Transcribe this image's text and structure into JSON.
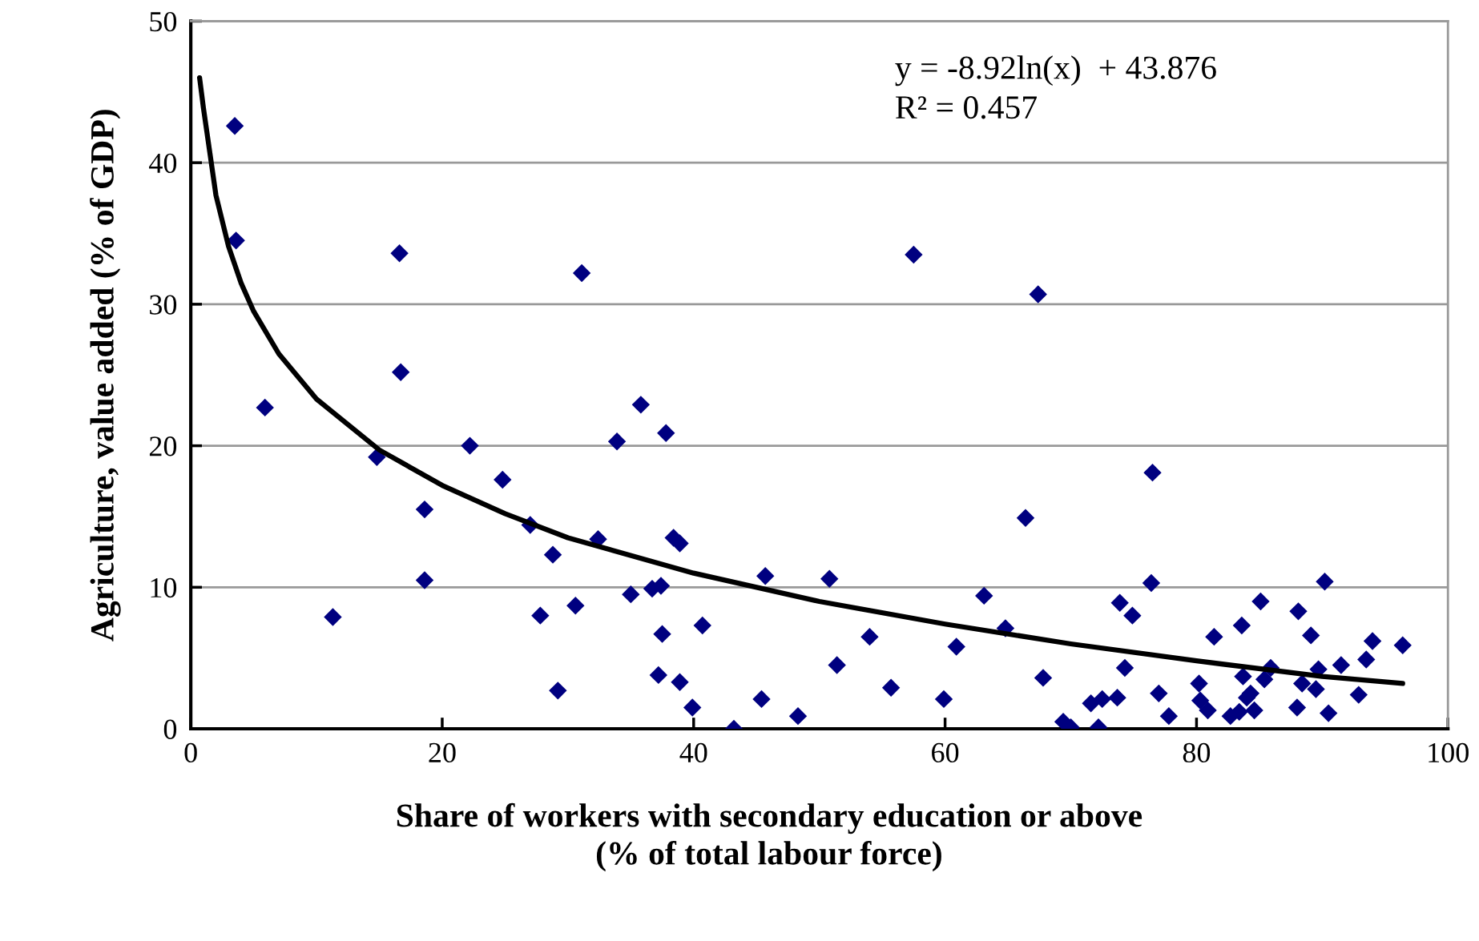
{
  "chart_data": {
    "type": "scatter",
    "xlabel": "Share of workers with secondary education or above\n(% of total labour force)",
    "ylabel": "Agriculture, value added (% of GDP)",
    "annotations": [
      "y = -8.92ln(x)  + 43.876",
      "R² = 0.457"
    ],
    "xlim": [
      0,
      100
    ],
    "xticks": [
      0,
      20,
      40,
      60,
      80,
      100
    ],
    "ylim": [
      0,
      50
    ],
    "yticks": [
      0,
      10,
      20,
      30,
      40,
      50
    ],
    "grid": "y",
    "legend": false,
    "series": [
      {
        "color": "#000080",
        "marker": "diamond",
        "x": [
          3.5,
          3.6,
          5.9,
          11.3,
          16.6,
          16.7,
          14.8,
          18.6,
          18.6,
          22.2,
          24.8,
          27.0,
          28.8,
          27.8,
          29.2,
          31.1,
          30.6,
          32.4,
          33.9,
          35.0,
          35.8,
          37.8,
          36.7,
          37.4,
          37.5,
          37.2,
          38.4,
          38.9,
          38.9,
          39.9,
          40.7,
          43.2,
          45.4,
          45.7,
          48.3,
          50.8,
          51.4,
          54.0,
          55.7,
          57.5,
          59.9,
          60.9,
          63.1,
          64.8,
          66.4,
          67.4,
          67.8,
          69.4,
          70.0,
          71.6,
          72.2,
          72.5,
          73.7,
          73.9,
          74.3,
          74.9,
          76.5,
          76.4,
          77.0,
          77.8,
          80.2,
          80.3,
          80.9,
          81.4,
          82.7,
          83.4,
          83.6,
          83.7,
          84.0,
          84.3,
          84.6,
          85.1,
          85.4,
          85.9,
          88.1,
          88.0,
          88.4,
          89.1,
          89.5,
          89.7,
          90.2,
          90.5,
          91.5,
          92.9,
          93.5,
          94.0,
          96.4
        ],
        "values": [
          42.6,
          34.5,
          22.7,
          7.9,
          33.6,
          25.2,
          19.2,
          15.5,
          10.5,
          20.0,
          17.6,
          14.4,
          12.3,
          8.0,
          2.7,
          32.2,
          8.7,
          13.4,
          20.3,
          9.5,
          22.9,
          20.9,
          9.9,
          10.1,
          6.7,
          3.8,
          13.5,
          13.1,
          3.3,
          1.5,
          7.3,
          0.0,
          2.1,
          10.8,
          0.9,
          10.6,
          4.5,
          6.5,
          2.9,
          33.5,
          2.1,
          5.8,
          9.4,
          7.1,
          14.9,
          30.7,
          3.6,
          0.5,
          0.1,
          1.8,
          0.1,
          2.1,
          2.2,
          8.9,
          4.3,
          8.0,
          18.1,
          10.3,
          2.5,
          0.9,
          3.2,
          2.0,
          1.3,
          6.5,
          0.9,
          1.2,
          7.3,
          3.7,
          2.2,
          2.5,
          1.3,
          9.0,
          3.5,
          4.3,
          8.3,
          1.5,
          3.2,
          6.6,
          2.8,
          4.2,
          10.4,
          1.1,
          4.5,
          2.4,
          4.9,
          6.2,
          5.9
        ]
      },
      {
        "type": "line",
        "color": "#000000",
        "marker": "none",
        "line_style": "solid",
        "x": [
          0.7,
          1,
          2,
          3,
          4,
          5,
          7,
          10,
          15,
          20,
          25,
          30,
          40,
          50,
          60,
          70,
          80,
          90,
          96.4
        ],
        "values": [
          46.0,
          43.9,
          37.7,
          34.1,
          31.5,
          29.5,
          26.5,
          23.3,
          19.7,
          17.2,
          15.2,
          13.5,
          11.0,
          9.0,
          7.4,
          6.0,
          4.8,
          3.7,
          3.2
        ]
      }
    ]
  }
}
